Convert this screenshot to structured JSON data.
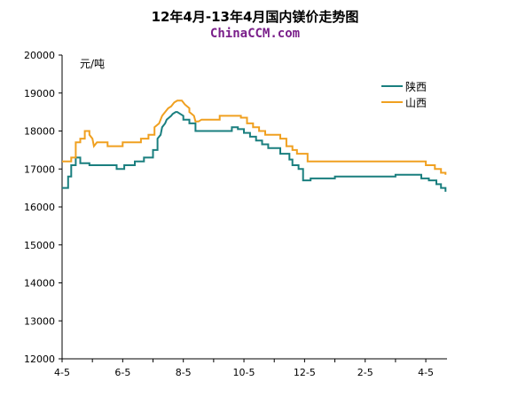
{
  "chart_data": {
    "type": "line",
    "title": "12年4月-13年4月国内镁价走势图",
    "subtitle": "ChinaCCM.com",
    "ylabel": "元/吨",
    "xlabel": "",
    "ylim": [
      12000,
      20000
    ],
    "y_ticks": [
      "20000",
      "19000",
      "18000",
      "17000",
      "16000",
      "15000",
      "14000",
      "13000",
      "12000"
    ],
    "y_tick_values": [
      20000,
      19000,
      18000,
      17000,
      16000,
      15000,
      14000,
      13000,
      12000
    ],
    "x_ticks": [
      "4-5",
      "6-5",
      "8-5",
      "10-5",
      "12-5",
      "2-5",
      "4-5"
    ],
    "x_tick_values": [
      0,
      2,
      4,
      6,
      8,
      10,
      12
    ],
    "x_range": [
      0,
      12.7
    ],
    "grid": false,
    "legend_position": "top-right",
    "series": [
      {
        "name": "陕西",
        "color": "#1a7f7f",
        "x": [
          0,
          0.2,
          0.2,
          0.3,
          0.3,
          0.45,
          0.45,
          0.6,
          0.6,
          0.9,
          0.9,
          1.1,
          1.1,
          1.8,
          1.8,
          2.05,
          2.05,
          2.4,
          2.4,
          2.7,
          2.7,
          3.0,
          3.0,
          3.15,
          3.15,
          3.25,
          3.3,
          3.4,
          3.45,
          3.6,
          3.65,
          3.75,
          3.8,
          3.9,
          4.0,
          4.0,
          4.2,
          4.2,
          4.4,
          4.4,
          5.6,
          5.6,
          5.8,
          5.8,
          6.0,
          6.0,
          6.2,
          6.2,
          6.4,
          6.4,
          6.6,
          6.6,
          6.8,
          6.8,
          7.2,
          7.2,
          7.5,
          7.5,
          7.6,
          7.6,
          7.8,
          7.8,
          7.95,
          7.95,
          8.2,
          8.2,
          9.0,
          9.0,
          9.6,
          9.6,
          11.0,
          11.0,
          11.7,
          11.7,
          11.85,
          11.85,
          12.1,
          12.1,
          12.35,
          12.35,
          12.5,
          12.5,
          12.65,
          12.65
        ],
        "values": [
          16500,
          16500,
          16800,
          16800,
          17100,
          17100,
          17300,
          17300,
          17150,
          17150,
          17100,
          17100,
          17100,
          17100,
          17000,
          17000,
          17100,
          17100,
          17200,
          17200,
          17300,
          17300,
          17500,
          17500,
          17800,
          17900,
          18100,
          18200,
          18300,
          18400,
          18450,
          18500,
          18500,
          18450,
          18400,
          18300,
          18300,
          18200,
          18200,
          18000,
          18000,
          18100,
          18100,
          18050,
          18050,
          17950,
          17950,
          17850,
          17850,
          17750,
          17750,
          17650,
          17650,
          17550,
          17550,
          17400,
          17400,
          17250,
          17250,
          17100,
          17100,
          17000,
          17000,
          16700,
          16700,
          16750,
          16750,
          16800,
          16800,
          16800,
          16800,
          16850,
          16850,
          16850,
          16850,
          16750,
          16750,
          16700,
          16700,
          16600,
          16600,
          16500,
          16500,
          16400
        ]
      },
      {
        "name": "山西",
        "color": "#f0a020",
        "x": [
          0,
          0.3,
          0.3,
          0.45,
          0.45,
          0.6,
          0.6,
          0.75,
          0.75,
          0.9,
          0.9,
          1.0,
          1.05,
          1.15,
          1.15,
          1.5,
          1.5,
          2.0,
          2.0,
          2.2,
          2.2,
          2.6,
          2.6,
          2.85,
          2.85,
          3.05,
          3.05,
          3.2,
          3.3,
          3.4,
          3.5,
          3.6,
          3.7,
          3.8,
          3.85,
          3.95,
          4.0,
          4.05,
          4.2,
          4.2,
          4.35,
          4.4,
          4.5,
          4.6,
          5.2,
          5.2,
          5.9,
          5.9,
          6.1,
          6.1,
          6.3,
          6.3,
          6.5,
          6.5,
          6.7,
          6.7,
          7.2,
          7.2,
          7.4,
          7.4,
          7.6,
          7.6,
          7.75,
          7.75,
          8.1,
          8.1,
          8.25,
          8.25,
          12.0,
          12.0,
          12.3,
          12.3,
          12.5,
          12.5,
          12.65,
          12.65
        ],
        "values": [
          17200,
          17200,
          17300,
          17300,
          17700,
          17700,
          17800,
          17800,
          18000,
          18000,
          17900,
          17800,
          17600,
          17700,
          17700,
          17700,
          17600,
          17600,
          17700,
          17700,
          17700,
          17700,
          17800,
          17800,
          17900,
          17900,
          18100,
          18200,
          18400,
          18500,
          18600,
          18650,
          18750,
          18800,
          18800,
          18800,
          18750,
          18700,
          18600,
          18500,
          18400,
          18250,
          18250,
          18300,
          18300,
          18400,
          18400,
          18350,
          18350,
          18200,
          18200,
          18100,
          18100,
          18000,
          18000,
          17900,
          17900,
          17800,
          17800,
          17600,
          17600,
          17500,
          17500,
          17400,
          17400,
          17200,
          17200,
          17200,
          17200,
          17100,
          17100,
          17000,
          17000,
          16900,
          16900,
          16850
        ]
      }
    ]
  }
}
